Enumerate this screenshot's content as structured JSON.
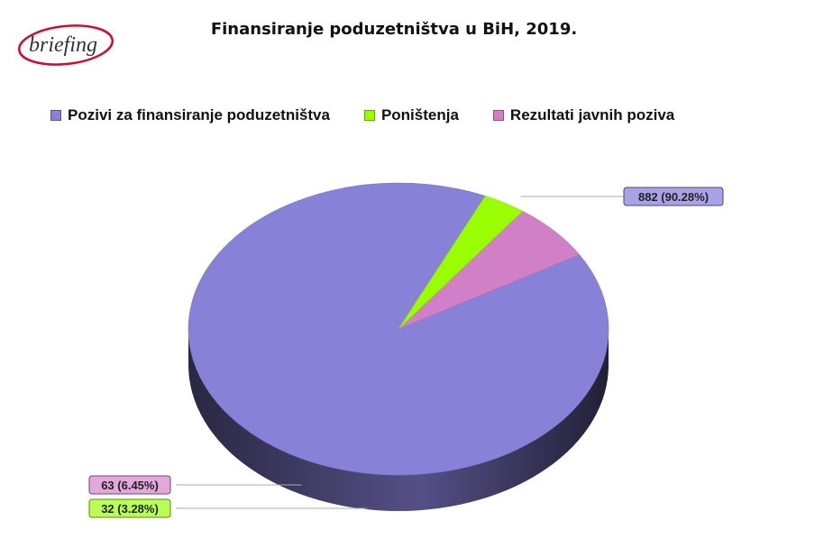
{
  "logo_text": "briefing",
  "chart_data": {
    "type": "pie",
    "title": "Finansiranje poduzetništva u BiH, 2019.",
    "legend_position": "top",
    "three_d": true,
    "slices": [
      {
        "name": "Pozivi za finansiranje poduzetništva",
        "value": 882,
        "percent": 90.28,
        "label": "882 (90.28%)",
        "color": "#8881d8",
        "label_fill": "#a8a3e6"
      },
      {
        "name": "Poništenja",
        "value": 32,
        "percent": 3.28,
        "label": "32 (3.28%)",
        "color": "#99ff00",
        "label_fill": "#b9ff55"
      },
      {
        "name": "Rezultati javnih poziva",
        "value": 63,
        "percent": 6.45,
        "label": "63 (6.45%)",
        "color": "#d17fc6",
        "label_fill": "#e3a8da"
      }
    ]
  }
}
